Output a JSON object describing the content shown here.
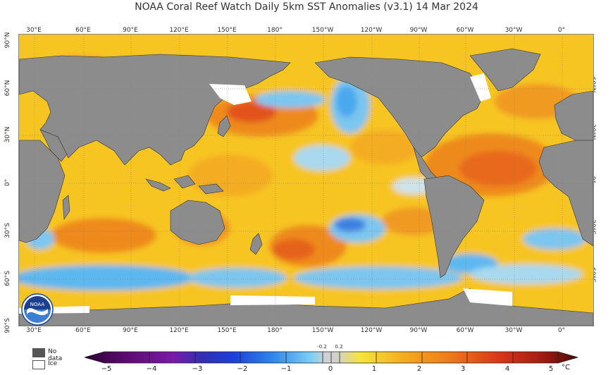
{
  "title": "NOAA Coral Reef Watch Daily 5km SST Anomalies  (v3.1)   14 Mar 2024",
  "map": {
    "lon_ticks": [
      "30°E",
      "60°E",
      "90°E",
      "120°E",
      "150°E",
      "180°",
      "150°W",
      "120°W",
      "90°W",
      "60°W",
      "30°W",
      "0°"
    ],
    "lat_ticks": [
      "90°N",
      "60°N",
      "30°N",
      "0°",
      "30°S",
      "60°S",
      "90°S"
    ],
    "lat_ticks_right": [
      "60°N",
      "30°N",
      "0°",
      "30°S",
      "60°S"
    ],
    "colors": {
      "land": "#8c8c8c",
      "ocean_base": "#f7c522",
      "warm": "#f28a1f",
      "hot": "#e14a14",
      "cool": "#4fb4f0",
      "cold": "#2a5fd6",
      "ice": "#ffffff",
      "no_data": "#555555"
    }
  },
  "legend": {
    "no_data_label": "No data",
    "ice_label": "Ice",
    "ticks": [
      "−5",
      "−4",
      "−3",
      "−2",
      "−1",
      "0",
      "1",
      "2",
      "3",
      "4",
      "5"
    ],
    "small_ticks": [
      "-0.2",
      "0.2"
    ],
    "unit": "°C",
    "range": [
      -5,
      5
    ]
  },
  "logo": {
    "text": "NOAA",
    "icon": "noaa-logo-icon"
  }
}
